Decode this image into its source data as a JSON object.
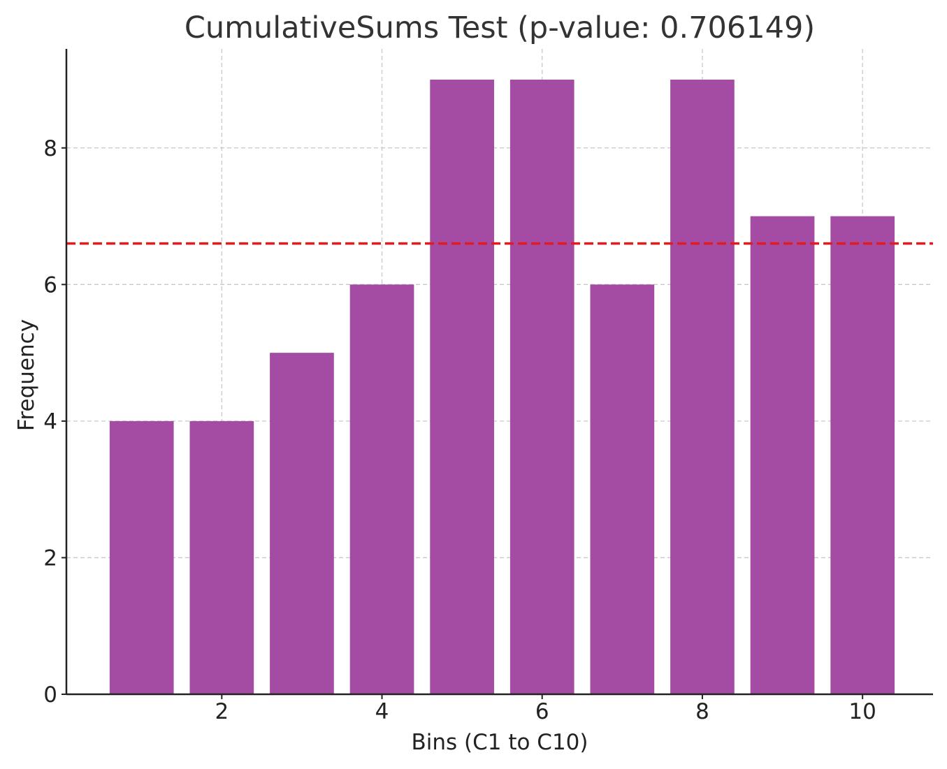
{
  "chart_data": {
    "type": "bar",
    "title": "CumulativeSums Test (p-value: 0.706149)",
    "xlabel": "Bins (C1 to C10)",
    "ylabel": "Frequency",
    "x": [
      1,
      2,
      3,
      4,
      5,
      6,
      7,
      8,
      9,
      10
    ],
    "values": [
      4,
      4,
      5,
      6,
      9,
      9,
      6,
      9,
      7,
      7
    ],
    "xlim": [
      0.06,
      10.88
    ],
    "ylim": [
      0,
      9.45
    ],
    "xticks": [
      2,
      4,
      6,
      8,
      10
    ],
    "yticks": [
      0,
      2,
      4,
      6,
      8
    ],
    "xtick_labels": [
      "2",
      "4",
      "6",
      "8",
      "10"
    ],
    "ytick_labels": [
      "0",
      "2",
      "4",
      "6",
      "8"
    ],
    "bar_color": "#a44ca4",
    "reference_line": {
      "y": 6.6,
      "color": "#e41a1c",
      "style": "dashed"
    },
    "grid": true
  }
}
